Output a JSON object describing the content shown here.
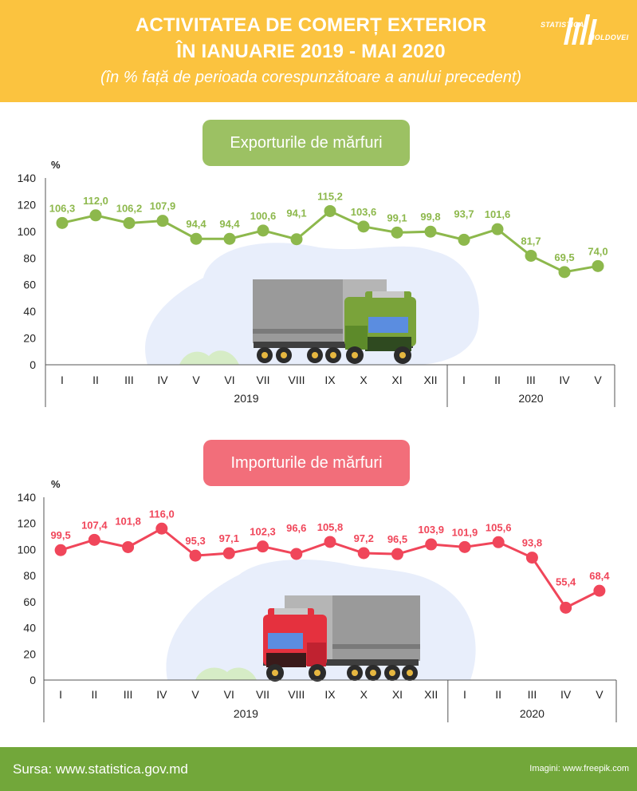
{
  "header": {
    "title_line1": "ACTIVITATEA DE COMERȚ EXTERIOR",
    "title_line2": "ÎN IANUARIE 2019 - MAI 2020",
    "subtitle": "(în % față de perioada corespunzătoare a anului precedent)",
    "logo_line1": "STATISTICA",
    "logo_line2": "MOLDOVEI"
  },
  "colors": {
    "header_bg": "#fbc33f",
    "export": "#8db84c",
    "import": "#f0465a",
    "footer_bg": "#72a73a"
  },
  "icons": [
    "logo-mark",
    "truck-illustration-green",
    "truck-illustration-red"
  ],
  "chart_data": [
    {
      "type": "line",
      "title": "Exporturile de mărfuri",
      "unit": "%",
      "ylim": [
        0,
        140
      ],
      "yticks": [
        "0",
        "20",
        "40",
        "60",
        "80",
        "100",
        "120",
        "140"
      ],
      "categories": [
        "I",
        "II",
        "III",
        "IV",
        "V",
        "VI",
        "VII",
        "VIII",
        "IX",
        "X",
        "XI",
        "XII",
        "I",
        "II",
        "III",
        "IV",
        "V"
      ],
      "groups": [
        {
          "label": "2019",
          "count": 12
        },
        {
          "label": "2020",
          "count": 5
        }
      ],
      "values": [
        106.3,
        112.0,
        106.2,
        107.9,
        94.4,
        94.4,
        100.6,
        94.1,
        115.2,
        103.6,
        99.1,
        99.8,
        93.7,
        101.6,
        81.7,
        69.5,
        74.0
      ],
      "labels": [
        "106,3",
        "112,0",
        "106,2",
        "107,9",
        "94,4",
        "94,4",
        "100,6",
        "94,1",
        "115,2",
        "103,6",
        "99,1",
        "99,8",
        "93,7",
        "101,6",
        "81,7",
        "69,5",
        "74,0"
      ],
      "color": "#8db84c"
    },
    {
      "type": "line",
      "title": "Importurile de mărfuri",
      "unit": "%",
      "ylim": [
        0,
        140
      ],
      "yticks": [
        "0",
        "20",
        "40",
        "60",
        "80",
        "100",
        "120",
        "140"
      ],
      "categories": [
        "I",
        "II",
        "III",
        "IV",
        "V",
        "VI",
        "VII",
        "VIII",
        "IX",
        "X",
        "XI",
        "XII",
        "I",
        "II",
        "III",
        "IV",
        "V"
      ],
      "groups": [
        {
          "label": "2019",
          "count": 12
        },
        {
          "label": "2020",
          "count": 5
        }
      ],
      "values": [
        99.5,
        107.4,
        101.8,
        116.0,
        95.3,
        97.1,
        102.3,
        96.6,
        105.8,
        97.2,
        96.5,
        103.9,
        101.9,
        105.6,
        93.8,
        55.4,
        68.4
      ],
      "labels": [
        "99,5",
        "107,4",
        "101,8",
        "116,0",
        "95,3",
        "97,1",
        "102,3",
        "96,6",
        "105,8",
        "97,2",
        "96,5",
        "103,9",
        "101,9",
        "105,6",
        "93,8",
        "55,4",
        "68,4"
      ],
      "color": "#f0465a"
    }
  ],
  "footer": {
    "source": "Sursa: www.statistica.gov.md",
    "images": "Imagini: www.freepik.com"
  }
}
